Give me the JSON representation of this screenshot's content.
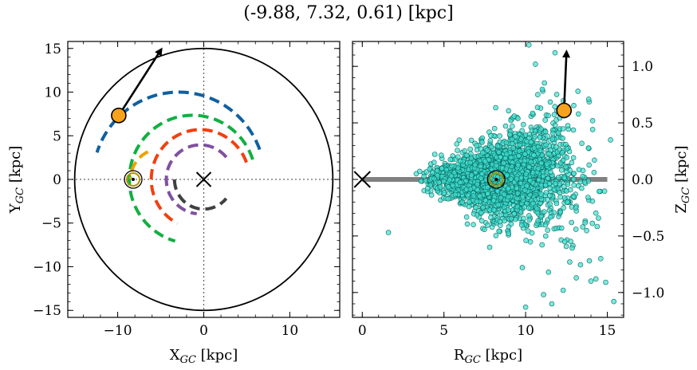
{
  "title": "(-9.88, 7.32, 0.61) [kpc]",
  "colors": {
    "blue": "#1060a0",
    "green": "#10b040",
    "orange": "#f0a000",
    "red": "#f04010",
    "purple": "#8050a0",
    "darkgray": "#404040",
    "sun_marker": "#f6a21c",
    "scatter_fill": "#40e0d0",
    "scatter_edge": "#0a6a62",
    "disk_line": "#808080",
    "sol_ring": "#b09000"
  },
  "chart_data": [
    {
      "type": "line",
      "panel": "left",
      "xlabel_main": "X",
      "xlabel_sub": "GC",
      "xlabel_unit": " [kpc]",
      "ylabel_main": "Y",
      "ylabel_sub": "GC",
      "ylabel_unit": " [kpc]",
      "xlim": [
        -15.8,
        15.8
      ],
      "ylim": [
        -15.8,
        15.8
      ],
      "xticks": [
        -10,
        0,
        10
      ],
      "yticks": [
        -15,
        -10,
        -5,
        0,
        5,
        10,
        15
      ],
      "x_tick_labels": [
        "−10",
        "0",
        "10"
      ],
      "y_tick_labels": [
        "−15",
        "−10",
        "−5",
        "0",
        "5",
        "10",
        "15"
      ],
      "boundary_circle_radius": 15,
      "galactic_center": [
        0,
        0
      ],
      "sun_position": [
        -8.2,
        0
      ],
      "object_position": [
        -9.88,
        7.32
      ],
      "velocity_arrow_end": [
        -5.0,
        14.8
      ],
      "arms": [
        {
          "color_key": "blue",
          "cx": -2.9,
          "cy": 0,
          "r": 10.0,
          "a0": 20,
          "a1": 163
        },
        {
          "color_key": "green",
          "cx": -1.3,
          "cy": 0,
          "r": 7.35,
          "a0": 18,
          "a1": 255
        },
        {
          "color_key": "orange",
          "cx": -5.0,
          "cy": 0,
          "r": 3.5,
          "a0": 115,
          "a1": 180
        },
        {
          "color_key": "red",
          "cx": -0.4,
          "cy": 0,
          "r": 5.7,
          "a0": 20,
          "a1": 243
        },
        {
          "color_key": "purple",
          "cx": -0.4,
          "cy": 0,
          "r": 3.95,
          "a0": 40,
          "a1": 265
        },
        {
          "color_key": "darkgray",
          "cx": 0.0,
          "cy": 0,
          "r": 3.4,
          "a0": 180,
          "a1": 320
        }
      ]
    },
    {
      "type": "scatter",
      "panel": "right",
      "xlabel_main": "R",
      "xlabel_sub": "GC",
      "xlabel_unit": " [kpc]",
      "ylabel_main": "Z",
      "ylabel_sub": "GC",
      "ylabel_unit": " [kpc]",
      "xlim": [
        -0.6,
        16.0
      ],
      "ylim": [
        -1.22,
        1.22
      ],
      "xticks": [
        0,
        5,
        10,
        15
      ],
      "yticks": [
        -1.0,
        -0.5,
        0.0,
        0.5,
        1.0
      ],
      "x_tick_labels": [
        "0",
        "5",
        "10",
        "15"
      ],
      "y_tick_labels": [
        "−1.0",
        "−0.5",
        "0.0",
        "0.5",
        "1.0"
      ],
      "disk_line": [
        0,
        15
      ],
      "galactic_center": [
        0,
        0
      ],
      "sun_position": [
        8.2,
        0
      ],
      "object_position": [
        12.35,
        0.61
      ],
      "velocity_arrow_end": [
        12.5,
        1.12
      ],
      "stars_count": 2200,
      "points": [
        [
          1.6,
          -0.47
        ],
        [
          3.3,
          0.05
        ],
        [
          4.0,
          -0.08
        ],
        [
          7.8,
          -0.6
        ],
        [
          10.2,
          1.19
        ],
        [
          11.8,
          1.12
        ],
        [
          10.6,
          1.02
        ],
        [
          11.1,
          -1.02
        ],
        [
          10.0,
          -1.13
        ],
        [
          11.6,
          -1.1
        ],
        [
          12.3,
          -0.98
        ],
        [
          14.0,
          -0.9
        ],
        [
          14.3,
          -0.88
        ],
        [
          14.9,
          -0.91
        ],
        [
          15.4,
          -1.08
        ],
        [
          13.1,
          -0.87
        ],
        [
          9.8,
          -0.78
        ],
        [
          12.4,
          -0.55
        ],
        [
          13.5,
          -0.42
        ],
        [
          15.2,
          0.35
        ],
        [
          14.1,
          0.52
        ],
        [
          13.2,
          0.78
        ],
        [
          9.3,
          0.56
        ],
        [
          8.1,
          0.45
        ],
        [
          7.0,
          0.3
        ],
        [
          6.8,
          -0.4
        ],
        [
          13.9,
          -0.72
        ],
        [
          14.6,
          -0.7
        ],
        [
          12.7,
          -0.73
        ],
        [
          11.4,
          -0.82
        ]
      ]
    }
  ]
}
